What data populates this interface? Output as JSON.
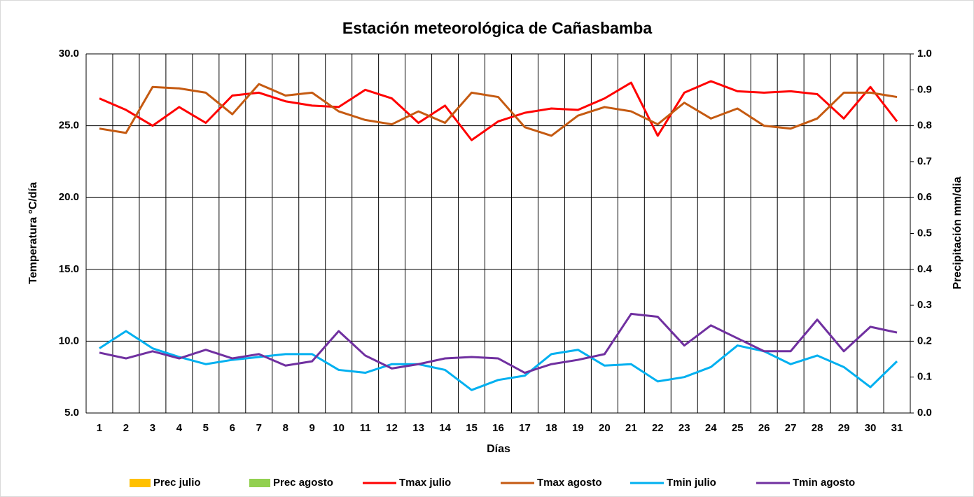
{
  "chart_data": {
    "type": "line",
    "title": "Estación meteorológica de Cañasbamba",
    "x_label": "Días",
    "y_label": "Temperatura °C/día",
    "y2_label": "Precipitación mm/dia",
    "categories": [
      "1",
      "2",
      "3",
      "4",
      "5",
      "6",
      "7",
      "8",
      "9",
      "10",
      "11",
      "12",
      "13",
      "14",
      "15",
      "16",
      "17",
      "18",
      "19",
      "20",
      "21",
      "22",
      "23",
      "24",
      "25",
      "26",
      "27",
      "28",
      "29",
      "30",
      "31"
    ],
    "ylim": [
      5,
      30
    ],
    "yticks": [
      {
        "value": 5,
        "label": "5.0"
      },
      {
        "value": 10,
        "label": "10.0"
      },
      {
        "value": 15,
        "label": "15.0"
      },
      {
        "value": 20,
        "label": "20.0"
      },
      {
        "value": 25,
        "label": "25.0"
      },
      {
        "value": 30,
        "label": "30.0"
      }
    ],
    "y2lim": [
      0,
      1
    ],
    "y2ticks": [
      {
        "value": 0,
        "label": "0.0"
      },
      0.1,
      0.2,
      0.3,
      0.4,
      0.5,
      0.6,
      0.7,
      0.8,
      0.9,
      {
        "value": 1,
        "label": "1.0"
      }
    ],
    "grid": true,
    "legend": "bottom",
    "series": [
      {
        "name": "Prec julio",
        "type": "bar",
        "axis": "y2",
        "color": "#ffc000",
        "values": [
          0,
          0,
          0,
          0,
          0,
          0,
          0,
          0,
          0,
          0,
          0,
          0,
          0,
          0,
          0,
          0,
          0,
          0,
          0,
          0,
          0,
          0,
          0,
          0,
          0,
          0,
          0,
          0,
          0,
          0,
          0
        ]
      },
      {
        "name": "Prec agosto",
        "type": "bar",
        "axis": "y2",
        "color": "#92d050",
        "values": [
          0,
          0,
          0,
          0,
          0,
          0,
          0,
          0,
          0,
          0,
          0,
          0,
          0,
          0,
          0,
          0,
          0,
          0,
          0,
          0,
          0,
          0,
          0,
          0,
          0,
          0,
          0,
          0,
          0,
          0,
          0
        ]
      },
      {
        "name": "Tmax julio",
        "type": "line",
        "color": "#ff0000",
        "values": [
          26.9,
          26.1,
          25.0,
          26.3,
          25.2,
          27.1,
          27.3,
          26.7,
          26.4,
          26.3,
          27.5,
          26.9,
          25.2,
          26.4,
          24.0,
          25.3,
          25.9,
          26.2,
          26.1,
          26.9,
          28.0,
          24.3,
          27.3,
          28.1,
          27.4,
          27.3,
          27.4,
          27.2,
          25.5,
          27.7,
          25.3
        ]
      },
      {
        "name": "Tmax agosto",
        "type": "line",
        "color": "#c55a11",
        "values": [
          24.8,
          24.5,
          27.7,
          27.6,
          27.3,
          25.8,
          27.9,
          27.1,
          27.3,
          26.0,
          25.4,
          25.1,
          26.0,
          25.2,
          27.3,
          27.0,
          24.9,
          24.3,
          25.7,
          26.3,
          26.0,
          25.1,
          26.6,
          25.5,
          26.2,
          25.0,
          24.8,
          25.5,
          27.3,
          27.3,
          27.0
        ]
      },
      {
        "name": "Tmin julio",
        "type": "line",
        "color": "#00b0f0",
        "values": [
          9.5,
          10.7,
          9.5,
          8.9,
          8.4,
          8.7,
          8.9,
          9.1,
          9.1,
          8.0,
          7.8,
          8.4,
          8.4,
          8.0,
          6.6,
          7.3,
          7.6,
          9.1,
          9.4,
          8.3,
          8.4,
          7.2,
          7.5,
          8.2,
          9.7,
          9.3,
          8.4,
          9.0,
          8.2,
          6.8,
          8.6
        ]
      },
      {
        "name": "Tmin agosto",
        "type": "line",
        "color": "#7030a0",
        "values": [
          9.2,
          8.8,
          9.3,
          8.8,
          9.4,
          8.8,
          9.1,
          8.3,
          8.6,
          10.7,
          9.0,
          8.1,
          8.4,
          8.8,
          8.9,
          8.8,
          7.8,
          8.4,
          8.7,
          9.1,
          11.9,
          11.7,
          9.7,
          11.1,
          10.2,
          9.3,
          9.3,
          11.5,
          9.3,
          11.0,
          10.6
        ]
      }
    ]
  }
}
